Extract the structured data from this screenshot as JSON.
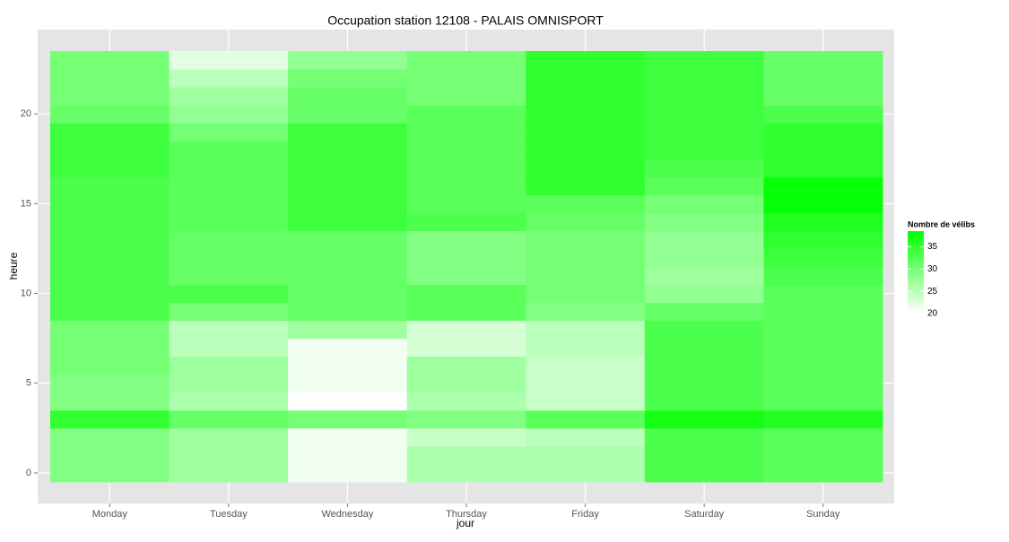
{
  "chart_data": {
    "type": "heatmap",
    "title": "Occupation station 12108 - PALAIS OMNISPORT",
    "x_label": "jour",
    "y_label": "heure",
    "categories": [
      "Monday",
      "Tuesday",
      "Wednesday",
      "Thursday",
      "Friday",
      "Saturday",
      "Sunday"
    ],
    "y": [
      0,
      1,
      2,
      3,
      4,
      5,
      6,
      7,
      8,
      9,
      10,
      11,
      12,
      13,
      14,
      15,
      16,
      17,
      18,
      19,
      20,
      21,
      22,
      23
    ],
    "values": [
      [
        29,
        29,
        29,
        35,
        29,
        29,
        30,
        30,
        30,
        33,
        33,
        33,
        33,
        33,
        33,
        33,
        33,
        34,
        34,
        34,
        31,
        30,
        30,
        30
      ],
      [
        27,
        27,
        27,
        31,
        26,
        27,
        27,
        25,
        25,
        30,
        33,
        31,
        31,
        31,
        32,
        32,
        32,
        32,
        32,
        30,
        28,
        27,
        25,
        22
      ],
      [
        21,
        21,
        21,
        30,
        20,
        21,
        21,
        21,
        27,
        31,
        31,
        31,
        31,
        31,
        34,
        34,
        34,
        34,
        34,
        34,
        31,
        31,
        30,
        28
      ],
      [
        26,
        26,
        24,
        29,
        26,
        27,
        27,
        23,
        23,
        32,
        32,
        29,
        29,
        29,
        33,
        32,
        32,
        32,
        32,
        32,
        32,
        30,
        30,
        30
      ],
      [
        26,
        26,
        25,
        32,
        24,
        24,
        24,
        25,
        25,
        29,
        30,
        30,
        30,
        30,
        31,
        32,
        35,
        35,
        35,
        35,
        35,
        35,
        35,
        35
      ],
      [
        33,
        33,
        33,
        37,
        33,
        33,
        33,
        33,
        33,
        31,
        28,
        27,
        28,
        28,
        29,
        30,
        32,
        33,
        34,
        34,
        34,
        34,
        34,
        34
      ],
      [
        32,
        32,
        32,
        36,
        32,
        32,
        32,
        32,
        32,
        32,
        32,
        33,
        34,
        35,
        36,
        38,
        38,
        35,
        35,
        35,
        33,
        31,
        31,
        31
      ]
    ],
    "ylim": [
      -1.7,
      24.7
    ],
    "yticks": [
      0,
      5,
      10,
      15,
      20
    ],
    "colorbar": {
      "title": "Nombre de vélibs",
      "lim": [
        20,
        38.5
      ],
      "ticks": [
        20,
        25,
        30,
        35
      ],
      "low": "#ffffff",
      "high": "#00ff00"
    },
    "grid": true
  }
}
